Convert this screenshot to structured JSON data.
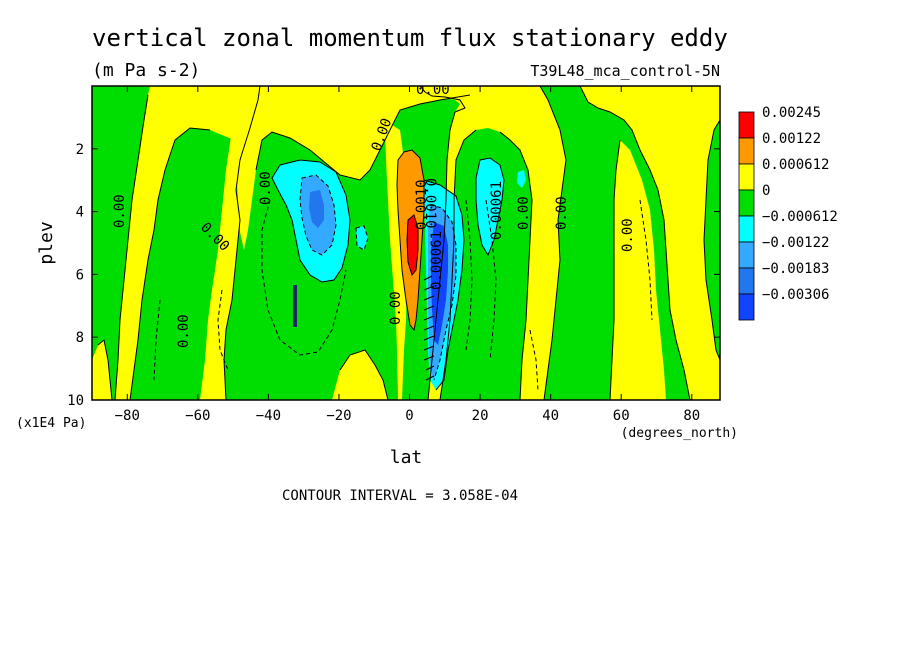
{
  "chart_data": {
    "type": "heatmap",
    "title": "vertical zonal momentum flux stationary eddy",
    "units": "(m Pa s-2)",
    "dataset": "T39L48_mca_control-5N",
    "xlabel": "lat",
    "xunits": "(degrees_north)",
    "ylabel": "plev",
    "yunits": "(x1E4 Pa)",
    "xlim": [
      -90,
      88
    ],
    "ylim": [
      0,
      10
    ],
    "y_inverted": true,
    "x_ticks": [
      -80,
      -60,
      -40,
      -20,
      0,
      20,
      40,
      60,
      80
    ],
    "y_ticks": [
      2,
      4,
      6,
      8,
      10
    ],
    "contour_interval": "CONTOUR INTERVAL = 3.058E-04",
    "legend": {
      "placement": "right",
      "levels": [
        {
          "label": "0.00245",
          "color": "#ff0000"
        },
        {
          "label": "0.00122",
          "color": "#ff9900"
        },
        {
          "label": "0.000612",
          "color": "#ffff00"
        },
        {
          "label": "0",
          "color": "#00dd00"
        },
        {
          "label": "-0.000612",
          "color": "#00ffff"
        },
        {
          "label": "-0.00122",
          "color": "#33aaff"
        },
        {
          "label": "-0.00183",
          "color": "#2277ee"
        },
        {
          "label": "-0.00306",
          "color": "#1144ff"
        }
      ]
    },
    "contour_labels": [
      "0.00",
      "0.00",
      "0.00",
      "0.00",
      "0.00",
      "0.00",
      "0.00",
      "0.00",
      "0.00",
      "0.00",
      "0.0010",
      "0.00061",
      "0.00061",
      "0.0010"
    ],
    "regions": [
      {
        "fill": "yellow",
        "lat": [
          -50,
          -5
        ],
        "plev": [
          0,
          3
        ]
      },
      {
        "fill": "blue",
        "lat": [
          -35,
          -15
        ],
        "plev": [
          2.5,
          6.5
        ]
      },
      {
        "fill": "orange",
        "lat": [
          -1,
          5
        ],
        "plev": [
          2,
          7
        ]
      },
      {
        "fill": "red",
        "lat": [
          1,
          4
        ],
        "plev": [
          4,
          6
        ]
      },
      {
        "fill": "blue",
        "lat": [
          5,
          13
        ],
        "plev": [
          3.5,
          9.5
        ]
      },
      {
        "fill": "cyan",
        "lat": [
          18,
          28
        ],
        "plev": [
          2.5,
          5
        ]
      }
    ]
  }
}
